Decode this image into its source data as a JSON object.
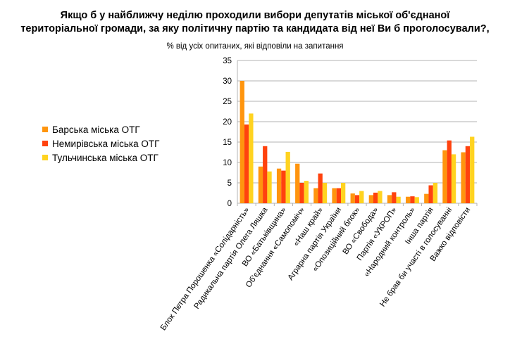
{
  "chart_data": {
    "type": "bar",
    "title_lines": [
      "Якщо б у найближчу неділю проходили вибори депутатів міської об'єднаної",
      "територіальної громади, за яку політичну партію та кандидата від неї Ви б проголосували?,"
    ],
    "subtitle": "% від усіх опитаних, які відповіли на запитання",
    "categories": [
      "Блок Петра Порошенка «Солідарність»",
      "Радикальна партія Олега Ляшка",
      "ВО «Батьківщина»",
      "Об'єднання «Самопоміч»",
      "«Наш край»",
      "Аграрна партія України",
      "«Опозиційний блок»",
      "ВО «Свобода»",
      "Партія «УКРОП»",
      "«Народний контроль»",
      "Інша партія",
      "Не брав би участі в голосуванні",
      "Важко відповісти"
    ],
    "series": [
      {
        "name": "Барська міська ОТГ",
        "color": "#ff950e",
        "values": [
          30.0,
          9.0,
          8.5,
          9.7,
          3.7,
          3.7,
          2.4,
          2.0,
          2.0,
          1.6,
          2.3,
          13.0,
          12.5
        ]
      },
      {
        "name": "Немирівська міська ОТГ",
        "color": "#ff420e",
        "values": [
          19.3,
          14.0,
          8.0,
          5.0,
          7.3,
          3.7,
          2.0,
          2.6,
          2.7,
          1.7,
          4.4,
          15.4,
          14.0
        ]
      },
      {
        "name": "Тульчинська міська ОТГ",
        "color": "#ffd320",
        "values": [
          22.0,
          7.8,
          12.6,
          5.5,
          5.0,
          5.0,
          3.0,
          3.0,
          1.6,
          1.5,
          5.0,
          12.0,
          16.3
        ]
      }
    ],
    "yticks": [
      "0",
      "5",
      "10",
      "15",
      "20",
      "25",
      "30",
      "35"
    ],
    "ylim": [
      0,
      35
    ],
    "grid": true,
    "legend_position": "left"
  }
}
